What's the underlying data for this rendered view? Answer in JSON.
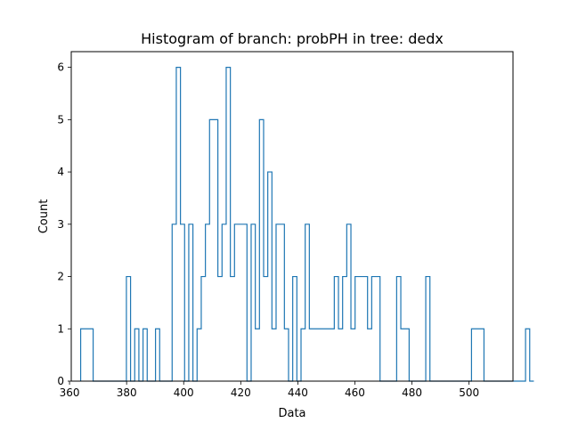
{
  "chart_data": {
    "type": "histogram",
    "title": "Histogram of branch: probPH in tree: dedx",
    "xlabel": "Data",
    "ylabel": "Count",
    "xlim": [
      360.6,
      515.4
    ],
    "ylim": [
      0,
      6.3
    ],
    "xticks": [
      360,
      380,
      400,
      420,
      440,
      460,
      480,
      500
    ],
    "yticks": [
      0,
      1,
      2,
      3,
      4,
      5,
      6
    ],
    "line_color": "#1f77b4",
    "bin_start": 363.9,
    "bin_width": 1.457,
    "counts": [
      1,
      1,
      1,
      0,
      0,
      0,
      0,
      0,
      0,
      0,
      0,
      2,
      0,
      1,
      0,
      1,
      0,
      0,
      1,
      0,
      0,
      0,
      3,
      6,
      3,
      0,
      3,
      0,
      1,
      2,
      3,
      5,
      5,
      2,
      3,
      6,
      2,
      3,
      3,
      3,
      0,
      3,
      1,
      5,
      2,
      4,
      1,
      3,
      3,
      1,
      0,
      2,
      0,
      1,
      3,
      1,
      1,
      1,
      1,
      1,
      1,
      2,
      1,
      2,
      3,
      1,
      2,
      2,
      2,
      1,
      2,
      2,
      0,
      0,
      0,
      0,
      2,
      1,
      1,
      0,
      0,
      0,
      0,
      2,
      0,
      0,
      0,
      0,
      0,
      0,
      0,
      0,
      0,
      0,
      1,
      1,
      1,
      0,
      0,
      0,
      0,
      0,
      0,
      0,
      0,
      0,
      0,
      1,
      0
    ]
  }
}
